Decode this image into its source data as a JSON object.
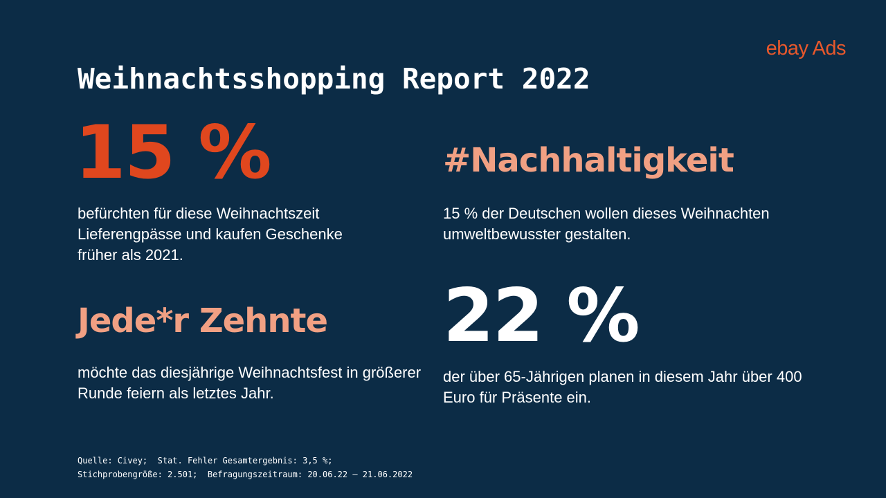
{
  "logo": {
    "brand": "ebay",
    "product": "Ads"
  },
  "title": "Weihnachtsshopping Report 2022",
  "blocks": [
    {
      "headline": "15 %",
      "text": "befürchten für diese Weihnachtszeit Lieferengpässe und kaufen Geschenke früher als 2021."
    },
    {
      "headline": "#Nachhaltigkeit",
      "text": "15 % der Deutschen wollen dieses Weihnachten umweltbewusster gestalten."
    },
    {
      "headline": "Jede*r Zehnte",
      "text": "möchte das diesjährige Weihnachtsfest in größerer Runde feiern als letztes Jahr."
    },
    {
      "headline": "22 %",
      "text": "der über 65-Jährigen planen in diesem Jahr über 400 Euro für Präsente ein."
    }
  ],
  "source": {
    "line1": "Quelle: Civey;  Stat. Fehler Gesamtergebnis: 3,5 %;",
    "line2": "Stichprobengröße: 2.501;  Befragungszeitraum: 20.06.22 – 21.06.2022"
  },
  "colors": {
    "background": "#0c2c46",
    "accent_orange": "#e0471e",
    "accent_salmon": "#f1a083",
    "logo": "#e8582c"
  }
}
